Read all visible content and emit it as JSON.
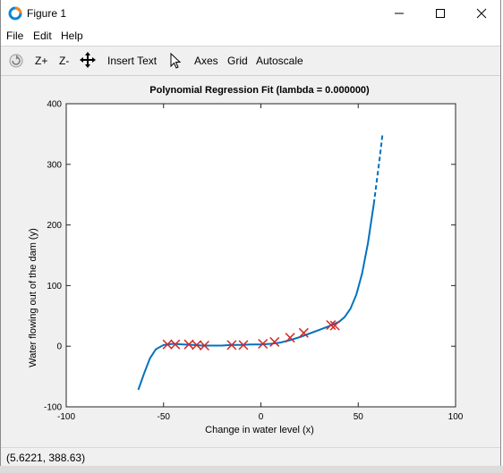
{
  "window": {
    "title": "Figure 1"
  },
  "menu": {
    "items": [
      "File",
      "Edit",
      "Help"
    ]
  },
  "toolbar": {
    "zoom_in": "Z+",
    "zoom_out": "Z-",
    "insert_text": "Insert Text",
    "axes": "Axes",
    "grid": "Grid",
    "autoscale": "Autoscale"
  },
  "status": {
    "coords": "(5.6221, 388.63)"
  },
  "colors": {
    "fit": "#0072bd",
    "data": "#d62728",
    "axes_bg": "#ffffff",
    "figure_bg": "#f0f0f0"
  },
  "icons": [
    "figure-app-icon",
    "minimize-icon",
    "maximize-icon",
    "close-icon",
    "rotate-icon",
    "pan-icon",
    "select-cursor-icon"
  ],
  "chart_data": {
    "type": "line",
    "title": "Polynomial Regression Fit (lambda = 0.000000)",
    "xlabel": "Change in water level (x)",
    "ylabel": "Water flowing out of the dam (y)",
    "xlim": [
      -100,
      100
    ],
    "ylim": [
      -100,
      400
    ],
    "xticks": [
      -100,
      -50,
      0,
      50,
      100
    ],
    "yticks": [
      -100,
      0,
      100,
      200,
      300,
      400
    ],
    "grid": false,
    "series": [
      {
        "kind": "line",
        "style": "dashed-ends",
        "x": [
          -63,
          -60,
          -57,
          -54,
          -50,
          -45,
          -40,
          -35,
          -30,
          -25,
          -20,
          -15,
          -10,
          -5,
          0,
          5,
          10,
          15,
          20,
          25,
          30,
          35,
          40,
          43,
          46,
          49,
          52,
          55,
          58,
          61,
          62.5
        ],
        "y": [
          -72,
          -45,
          -20,
          -5,
          2,
          4,
          3,
          2,
          1,
          1,
          1,
          2,
          2,
          3,
          3,
          4,
          6,
          10,
          15,
          21,
          27,
          33,
          40,
          48,
          62,
          85,
          120,
          170,
          235,
          310,
          350
        ]
      },
      {
        "kind": "scatter",
        "marker": "x",
        "x": [
          -48,
          -44,
          -37,
          -33,
          -29,
          -15,
          -9,
          1,
          7,
          15,
          22,
          36,
          38
        ],
        "y": [
          3,
          3,
          3,
          2,
          1,
          2,
          2,
          4,
          7,
          14,
          22,
          35,
          34
        ]
      }
    ]
  }
}
